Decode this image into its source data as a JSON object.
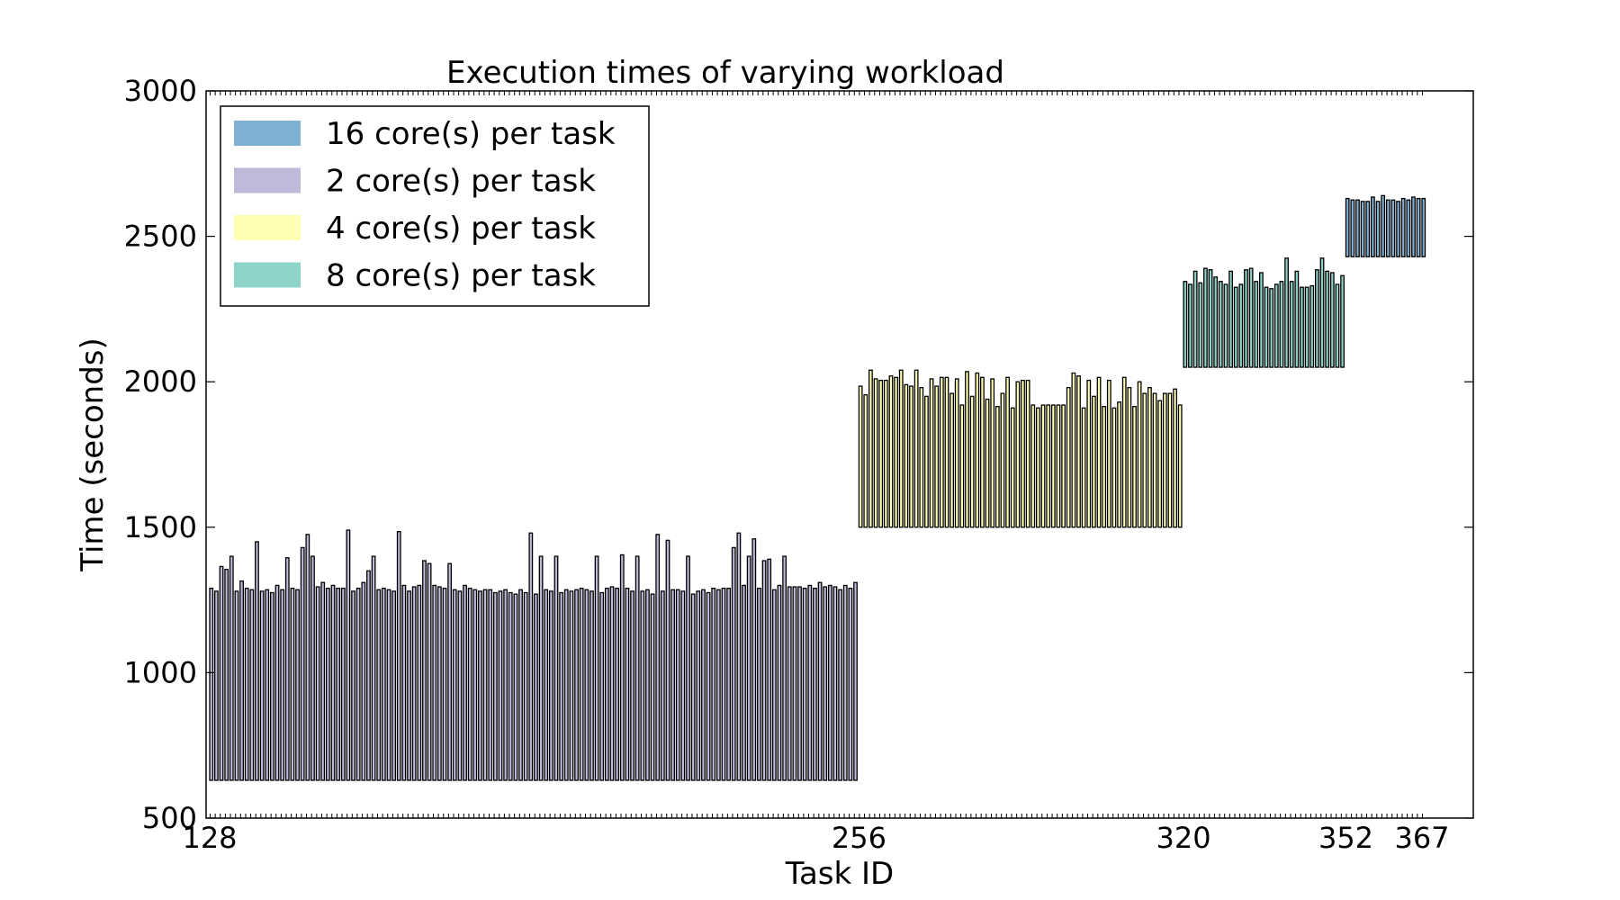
{
  "chart_data": {
    "type": "bar",
    "title": "Execution times of varying workload",
    "xlabel": "Task ID",
    "ylabel": "Time (seconds)",
    "xlim": [
      128,
      367
    ],
    "ylim": [
      500,
      3000
    ],
    "yticks": [
      500,
      1000,
      1500,
      2000,
      2500,
      3000
    ],
    "xticks": [
      128,
      256,
      320,
      352,
      367
    ],
    "legend_position": "top-left",
    "grid": false,
    "series": [
      {
        "name": "16 core(s) per task",
        "color": "#80b1d3",
        "x_start": 352,
        "bottoms": [
          2430,
          2430,
          2430,
          2430,
          2430,
          2430,
          2430,
          2430,
          2430,
          2430,
          2430,
          2430,
          2430,
          2430,
          2430,
          2430
        ],
        "tops": [
          2630,
          2625,
          2625,
          2620,
          2620,
          2635,
          2620,
          2640,
          2625,
          2625,
          2620,
          2630,
          2625,
          2635,
          2630,
          2630
        ]
      },
      {
        "name": "2 core(s) per task",
        "color": "#bebada",
        "x_start": 128,
        "bottoms": [
          630,
          630,
          630,
          630,
          630,
          630,
          630,
          630,
          630,
          630,
          630,
          630,
          630,
          630,
          630,
          630,
          630,
          630,
          630,
          630,
          630,
          630,
          630,
          630,
          630,
          630,
          630,
          630,
          630,
          630,
          630,
          630,
          630,
          630,
          630,
          630,
          630,
          630,
          630,
          630,
          630,
          630,
          630,
          630,
          630,
          630,
          630,
          630,
          630,
          630,
          630,
          630,
          630,
          630,
          630,
          630,
          630,
          630,
          630,
          630,
          630,
          630,
          630,
          630,
          630,
          630,
          630,
          630,
          630,
          630,
          630,
          630,
          630,
          630,
          630,
          630,
          630,
          630,
          630,
          630,
          630,
          630,
          630,
          630,
          630,
          630,
          630,
          630,
          630,
          630,
          630,
          630,
          630,
          630,
          630,
          630,
          630,
          630,
          630,
          630,
          630,
          630,
          630,
          630,
          630,
          630,
          630,
          630,
          630,
          630,
          630,
          630,
          630,
          630,
          630,
          630,
          630,
          630,
          630,
          630,
          630,
          630,
          630,
          630,
          630,
          630,
          630,
          630
        ],
        "tops": [
          1290,
          1280,
          1365,
          1355,
          1400,
          1280,
          1315,
          1290,
          1285,
          1450,
          1280,
          1285,
          1275,
          1300,
          1285,
          1395,
          1290,
          1285,
          1430,
          1475,
          1400,
          1295,
          1310,
          1290,
          1300,
          1290,
          1290,
          1490,
          1280,
          1290,
          1310,
          1350,
          1400,
          1285,
          1290,
          1285,
          1280,
          1485,
          1300,
          1280,
          1295,
          1300,
          1385,
          1375,
          1300,
          1295,
          1290,
          1375,
          1285,
          1280,
          1300,
          1290,
          1285,
          1280,
          1285,
          1285,
          1275,
          1280,
          1285,
          1275,
          1270,
          1285,
          1275,
          1480,
          1270,
          1400,
          1285,
          1280,
          1400,
          1275,
          1285,
          1280,
          1285,
          1290,
          1285,
          1280,
          1400,
          1275,
          1290,
          1295,
          1290,
          1405,
          1290,
          1280,
          1400,
          1280,
          1285,
          1270,
          1475,
          1280,
          1455,
          1285,
          1285,
          1280,
          1400,
          1270,
          1280,
          1285,
          1275,
          1290,
          1285,
          1290,
          1290,
          1430,
          1480,
          1300,
          1400,
          1460,
          1290,
          1385,
          1390,
          1285,
          1300,
          1400,
          1295,
          1295,
          1295,
          1290,
          1300,
          1290,
          1310,
          1295,
          1300,
          1295,
          1285,
          1300,
          1290,
          1310
        ]
      },
      {
        "name": "4 core(s) per task",
        "color": "#ffffb3",
        "x_start": 256,
        "bottoms": [
          1500,
          1500,
          1500,
          1500,
          1500,
          1500,
          1500,
          1500,
          1500,
          1500,
          1500,
          1500,
          1500,
          1500,
          1500,
          1500,
          1500,
          1500,
          1500,
          1500,
          1500,
          1500,
          1500,
          1500,
          1500,
          1500,
          1500,
          1500,
          1500,
          1500,
          1500,
          1500,
          1500,
          1500,
          1500,
          1500,
          1500,
          1500,
          1500,
          1500,
          1500,
          1500,
          1500,
          1500,
          1500,
          1500,
          1500,
          1500,
          1500,
          1500,
          1500,
          1500,
          1500,
          1500,
          1500,
          1500,
          1500,
          1500,
          1500,
          1500,
          1500,
          1500,
          1500,
          1500
        ],
        "tops": [
          1985,
          1955,
          2040,
          2010,
          2005,
          2005,
          2020,
          2015,
          2040,
          1990,
          1985,
          2040,
          1980,
          1950,
          2010,
          1985,
          2015,
          2015,
          1960,
          2010,
          1920,
          2035,
          1950,
          2030,
          2015,
          1940,
          2010,
          1915,
          1960,
          2015,
          1910,
          2000,
          2005,
          2005,
          1920,
          1910,
          1920,
          1920,
          1920,
          1920,
          1920,
          1980,
          2030,
          2020,
          1910,
          2005,
          1950,
          2015,
          1915,
          2005,
          1910,
          1930,
          2015,
          1980,
          1915,
          2000,
          1960,
          1980,
          1960,
          1935,
          1960,
          1960,
          1975,
          1920
        ]
      },
      {
        "name": "8 core(s) per task",
        "color": "#8dd3c7",
        "x_start": 320,
        "bottoms": [
          2050,
          2050,
          2050,
          2050,
          2050,
          2050,
          2050,
          2050,
          2050,
          2050,
          2050,
          2050,
          2050,
          2050,
          2050,
          2050,
          2050,
          2050,
          2050,
          2050,
          2050,
          2050,
          2050,
          2050,
          2050,
          2050,
          2050,
          2050,
          2050,
          2050,
          2050,
          2050
        ],
        "tops": [
          2345,
          2335,
          2380,
          2340,
          2390,
          2385,
          2360,
          2345,
          2335,
          2380,
          2325,
          2335,
          2385,
          2390,
          2345,
          2375,
          2325,
          2320,
          2335,
          2345,
          2425,
          2345,
          2380,
          2325,
          2325,
          2330,
          2385,
          2425,
          2380,
          2375,
          2335,
          2365
        ]
      }
    ]
  }
}
